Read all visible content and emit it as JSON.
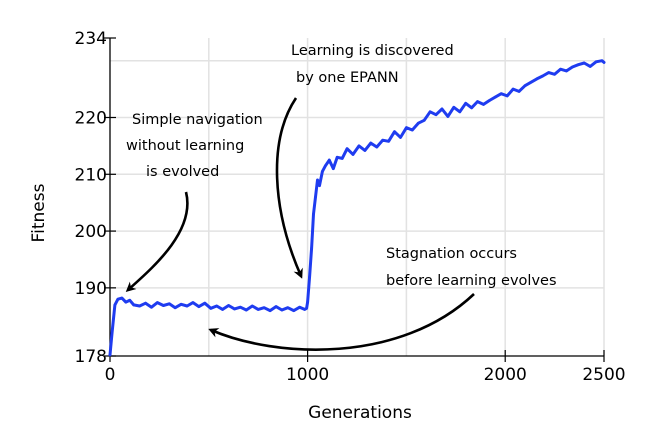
{
  "chart_data": {
    "type": "line",
    "xlabel": "Generations",
    "ylabel": "Fitness",
    "xlim": [
      0,
      2500
    ],
    "ylim": [
      178,
      234
    ],
    "x_ticks": [
      0,
      1000,
      2000,
      2500
    ],
    "y_ticks": [
      178,
      190,
      200,
      210,
      220,
      234
    ],
    "grid": true,
    "line_color": "#1f3cf0",
    "series": [
      {
        "name": "",
        "x": [
          0,
          10,
          25,
          40,
          60,
          80,
          100,
          120,
          150,
          180,
          210,
          240,
          270,
          300,
          330,
          360,
          390,
          420,
          450,
          480,
          510,
          540,
          570,
          600,
          630,
          660,
          690,
          720,
          750,
          780,
          810,
          840,
          870,
          900,
          930,
          960,
          985,
          995,
          1000,
          1010,
          1020,
          1030,
          1040,
          1050,
          1060,
          1075,
          1090,
          1110,
          1130,
          1150,
          1175,
          1200,
          1230,
          1260,
          1290,
          1320,
          1350,
          1380,
          1410,
          1440,
          1470,
          1500,
          1530,
          1560,
          1590,
          1620,
          1650,
          1680,
          1710,
          1740,
          1770,
          1800,
          1830,
          1860,
          1890,
          1920,
          1950,
          1980,
          2010,
          2040,
          2070,
          2100,
          2130,
          2160,
          2190,
          2220,
          2250,
          2280,
          2310,
          2340,
          2370,
          2400,
          2430,
          2460,
          2490,
          2500
        ],
        "y": [
          178.2,
          182,
          187,
          188,
          188.2,
          187.5,
          187.8,
          187,
          186.8,
          187.3,
          186.6,
          187.4,
          186.9,
          187.2,
          186.5,
          187.1,
          186.8,
          187.4,
          186.7,
          187.3,
          186.4,
          186.8,
          186.2,
          186.9,
          186.3,
          186.6,
          186.1,
          186.8,
          186.2,
          186.5,
          186.0,
          186.7,
          186.1,
          186.5,
          186.0,
          186.6,
          186.2,
          186.4,
          187.5,
          192,
          197,
          203,
          206,
          209,
          208,
          210.5,
          211.5,
          212.5,
          211,
          213,
          212.8,
          214.5,
          213.5,
          215,
          214.2,
          215.5,
          214.8,
          216,
          215.8,
          217.5,
          216.5,
          218.2,
          217.8,
          219,
          219.5,
          221,
          220.5,
          221.5,
          220.2,
          221.8,
          221,
          222.5,
          221.7,
          222.8,
          222.3,
          223,
          223.6,
          224.2,
          223.8,
          225,
          224.6,
          225.6,
          226.2,
          226.8,
          227.3,
          227.9,
          227.6,
          228.5,
          228.2,
          228.9,
          229.3,
          229.6,
          229.0,
          229.8,
          230.0,
          229.7
        ]
      }
    ],
    "annotations": [
      {
        "lines": [
          "Learning is discovered",
          "by one EPANN"
        ]
      },
      {
        "lines": [
          "Simple navigation",
          "without learning",
          "is evolved"
        ]
      },
      {
        "lines": [
          "Stagnation occurs",
          "before learning evolves"
        ]
      }
    ]
  }
}
